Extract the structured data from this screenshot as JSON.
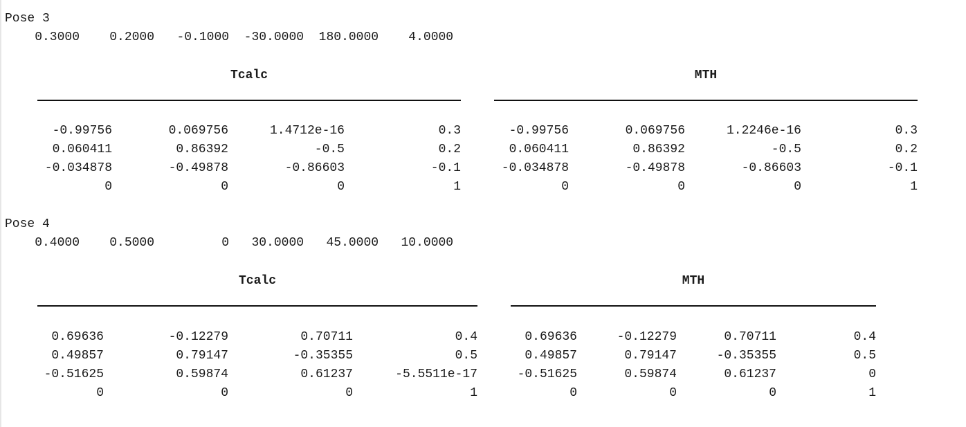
{
  "poses": [
    {
      "label": "Pose 3",
      "params_line": "    0.3000    0.2000   -0.1000  -30.0000  180.0000    4.0000",
      "tables": [
        {
          "header": "Tcalc",
          "rows": [
            [
              "-0.99756",
              "0.069756",
              "1.4712e-16",
              "0.3"
            ],
            [
              "0.060411",
              "0.86392",
              "-0.5",
              "0.2"
            ],
            [
              "-0.034878",
              "-0.49878",
              "-0.86603",
              "-0.1"
            ],
            [
              "0",
              "0",
              "0",
              "1"
            ]
          ]
        },
        {
          "header": "MTH",
          "rows": [
            [
              "-0.99756",
              "0.069756",
              "1.2246e-16",
              "0.3"
            ],
            [
              "0.060411",
              "0.86392",
              "-0.5",
              "0.2"
            ],
            [
              "-0.034878",
              "-0.49878",
              "-0.86603",
              "-0.1"
            ],
            [
              "0",
              "0",
              "0",
              "1"
            ]
          ]
        }
      ]
    },
    {
      "label": "Pose 4",
      "params_line": "    0.4000    0.5000         0   30.0000   45.0000   10.0000",
      "tables": [
        {
          "header": "Tcalc",
          "rows": [
            [
              "0.69636",
              "-0.12279",
              "0.70711",
              "0.4"
            ],
            [
              "0.49857",
              "0.79147",
              "-0.35355",
              "0.5"
            ],
            [
              "-0.51625",
              "0.59874",
              "0.61237",
              "-5.5511e-17"
            ],
            [
              "0",
              "0",
              "0",
              "1"
            ]
          ]
        },
        {
          "header": "MTH",
          "rows": [
            [
              "0.69636",
              "-0.12279",
              "0.70711",
              "0.4"
            ],
            [
              "0.49857",
              "0.79147",
              "-0.35355",
              "0.5"
            ],
            [
              "-0.51625",
              "0.59874",
              "0.61237",
              "0"
            ],
            [
              "0",
              "0",
              "0",
              "1"
            ]
          ]
        }
      ]
    }
  ]
}
